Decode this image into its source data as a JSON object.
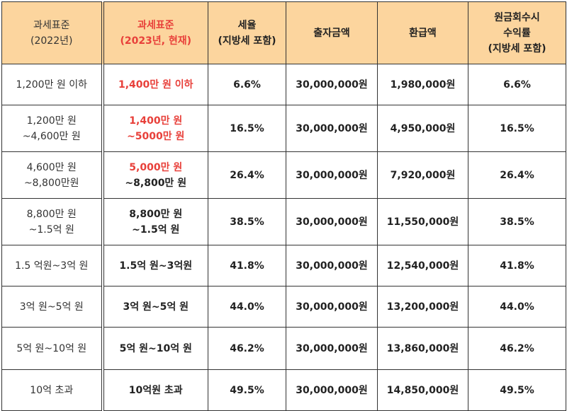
{
  "headers": [
    {
      "line1": "과세표준",
      "line2": "(2022년)"
    },
    {
      "line1": "과세표준",
      "line2": "(2023년, 현재)"
    },
    {
      "line1": "세율",
      "line2": "(지방세 포함)"
    },
    {
      "line1": "출자금액",
      "line2": ""
    },
    {
      "line1": "환급액",
      "line2": ""
    },
    {
      "line1": "원금회수시",
      "line2": "수익률",
      "line3": "(지방세 포함)"
    }
  ],
  "rows": [
    {
      "b2022": [
        "1,200만 원 이하"
      ],
      "b2023": [
        "1,400만 원 이하"
      ],
      "b2023_red": [
        true
      ],
      "rate": "6.6%",
      "rate_red": true,
      "invest": "30,000,000원",
      "refund": "1,980,000원",
      "yield": "6.6%"
    },
    {
      "b2022": [
        "1,200만 원",
        "~4,600만 원"
      ],
      "b2023": [
        "1,400만 원",
        "~5000만 원"
      ],
      "b2023_red": [
        true,
        true
      ],
      "rate": "16.5%",
      "rate_red": true,
      "invest": "30,000,000원",
      "refund": "4,950,000원",
      "yield": "16.5%"
    },
    {
      "b2022": [
        "4,600만 원",
        "~8,800만원"
      ],
      "b2023": [
        "5,000만 원",
        "~8,800만 원"
      ],
      "b2023_red": [
        true,
        false
      ],
      "rate": "26.4%",
      "rate_red": true,
      "invest": "30,000,000원",
      "refund": "7,920,000원",
      "yield": "26.4%"
    },
    {
      "b2022": [
        "8,800만 원",
        "~1.5억 원"
      ],
      "b2023": [
        "8,800만 원",
        "~1.5억 원"
      ],
      "b2023_red": [
        false,
        false
      ],
      "rate": "38.5%",
      "rate_red": false,
      "invest": "30,000,000원",
      "refund": "11,550,000원",
      "yield": "38.5%"
    },
    {
      "b2022": [
        "1.5 억원~3억 원"
      ],
      "b2023": [
        "1.5억 원~3억원"
      ],
      "b2023_red": [
        false
      ],
      "rate": "41.8%",
      "rate_red": false,
      "invest": "30,000,000원",
      "refund": "12,540,000원",
      "yield": "41.8%"
    },
    {
      "b2022": [
        "3억 원~5억 원"
      ],
      "b2023": [
        "3억 원~5억 원"
      ],
      "b2023_red": [
        false
      ],
      "rate": "44.0%",
      "rate_red": false,
      "invest": "30,000,000원",
      "refund": "13,200,000원",
      "yield": "44.0%"
    },
    {
      "b2022": [
        "5억 원~10억 원"
      ],
      "b2023": [
        "5억 원~10억 원"
      ],
      "b2023_red": [
        false
      ],
      "rate": "46.2%",
      "rate_red": false,
      "invest": "30,000,000원",
      "refund": "13,860,000원",
      "yield": "46.2%"
    },
    {
      "b2022": [
        "10억 초과"
      ],
      "b2023": [
        "10억원 초과"
      ],
      "b2023_red": [
        false
      ],
      "rate": "49.5%",
      "rate_red": false,
      "invest": "30,000,000원",
      "refund": "14,850,000원",
      "yield": "49.5%"
    }
  ],
  "colors": {
    "header_bg": "#fcd59e",
    "highlight": "#e8403a"
  }
}
